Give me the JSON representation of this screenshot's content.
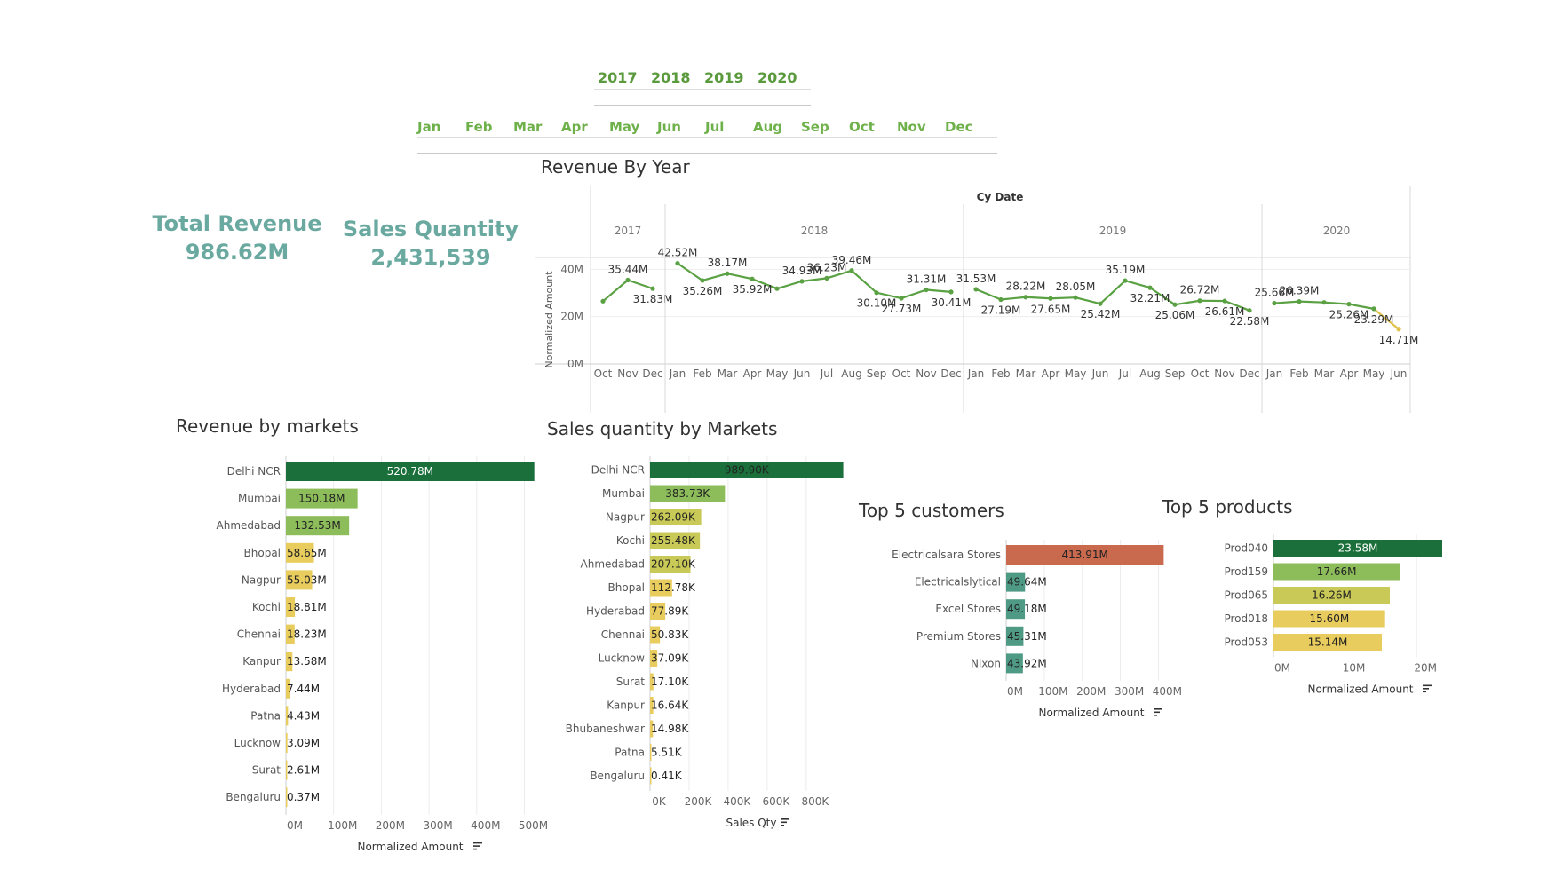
{
  "filters": {
    "years": [
      "2017",
      "2018",
      "2019",
      "2020"
    ],
    "months": [
      "Jan",
      "Feb",
      "Mar",
      "Apr",
      "May",
      "Jun",
      "Jul",
      "Aug",
      "Sep",
      "Oct",
      "Nov",
      "Dec"
    ]
  },
  "kpis": {
    "revenue_label": "Total Revenue",
    "revenue_value": "986.62M",
    "qty_label": "Sales Quantity",
    "qty_value": "2,431,539"
  },
  "colors": {
    "dark_green": "#1a6f3a",
    "light_green": "#8dbd5a",
    "yellow_green": "#c9c957",
    "yellow": "#e8cc5e",
    "teal": "#4f9a84",
    "salmon": "#c96a4e",
    "line_green": "#5aa143",
    "line_yellow": "#e0c14b"
  },
  "chart_data": [
    {
      "id": "revenue-by-year",
      "type": "line",
      "title": "Revenue By Year",
      "header": "Cy Date",
      "ylabel": "Normalized Amount",
      "yticks": [
        "0M",
        "20M",
        "40M"
      ],
      "ylim": [
        0,
        45
      ],
      "years": [
        {
          "year": "2017",
          "months": [
            "Oct",
            "Nov",
            "Dec"
          ],
          "values": [
            26.5,
            35.44,
            31.83
          ],
          "labels": [
            "",
            "35.44M",
            "31.83M"
          ]
        },
        {
          "year": "2018",
          "months": [
            "Jan",
            "Feb",
            "Mar",
            "Apr",
            "May",
            "Jun",
            "Jul",
            "Aug",
            "Sep",
            "Oct",
            "Nov",
            "Dec"
          ],
          "values": [
            42.52,
            35.26,
            38.17,
            35.92,
            31.8,
            34.93,
            36.23,
            39.46,
            30.1,
            27.73,
            31.31,
            30.41
          ],
          "labels": [
            "42.52M",
            "35.26M",
            "38.17M",
            "35.92M",
            "",
            "34.93M",
            "36.23M",
            "39.46M",
            "30.10M",
            "27.73M",
            "31.31M",
            "30.41M"
          ]
        },
        {
          "year": "2019",
          "months": [
            "Jan",
            "Feb",
            "Mar",
            "Apr",
            "May",
            "Jun",
            "Jul",
            "Aug",
            "Sep",
            "Oct",
            "Nov",
            "Dec"
          ],
          "values": [
            31.53,
            27.19,
            28.22,
            27.65,
            28.05,
            25.42,
            35.19,
            32.21,
            25.06,
            26.72,
            26.61,
            22.58
          ],
          "labels": [
            "31.53M",
            "27.19M",
            "28.22M",
            "27.65M",
            "28.05M",
            "25.42M",
            "35.19M",
            "32.21M",
            "25.06M",
            "26.72M",
            "26.61M",
            "22.58M"
          ]
        },
        {
          "year": "2020",
          "months": [
            "Jan",
            "Feb",
            "Mar",
            "Apr",
            "May",
            "Jun"
          ],
          "values": [
            25.66,
            26.39,
            26.0,
            25.26,
            23.29,
            14.71
          ],
          "labels": [
            "25.66M",
            "26.39M",
            "",
            "25.26M",
            "23.29M",
            "14.71M"
          ]
        }
      ]
    },
    {
      "id": "revenue-by-markets",
      "type": "bar",
      "title": "Revenue by markets",
      "xlabel": "Normalized Amount",
      "xticks": [
        "0M",
        "100M",
        "200M",
        "300M",
        "400M",
        "500M"
      ],
      "tick_values": [
        0,
        100,
        200,
        300,
        400,
        500
      ],
      "xlim": [
        0,
        540
      ],
      "categories": [
        "Delhi NCR",
        "Mumbai",
        "Ahmedabad",
        "Bhopal",
        "Nagpur",
        "Kochi",
        "Chennai",
        "Kanpur",
        "Hyderabad",
        "Patna",
        "Lucknow",
        "Surat",
        "Bengaluru"
      ],
      "values": [
        520.78,
        150.18,
        132.53,
        58.65,
        55.03,
        18.81,
        18.23,
        13.58,
        7.44,
        4.43,
        3.09,
        2.61,
        0.37
      ],
      "labels": [
        "520.78M",
        "150.18M",
        "132.53M",
        "58.65M",
        "55.03M",
        "18.81M",
        "18.23M",
        "13.58M",
        "7.44M",
        "4.43M",
        "3.09M",
        "2.61M",
        "0.37M"
      ]
    },
    {
      "id": "sales-qty-by-markets",
      "type": "bar",
      "title": "Sales quantity by Markets",
      "xlabel": "Sales Qty",
      "xticks": [
        "0K",
        "200K",
        "400K",
        "600K",
        "800K"
      ],
      "tick_values": [
        0,
        200,
        400,
        600,
        800
      ],
      "xlim": [
        0,
        1010
      ],
      "categories": [
        "Delhi NCR",
        "Mumbai",
        "Nagpur",
        "Kochi",
        "Ahmedabad",
        "Bhopal",
        "Hyderabad",
        "Chennai",
        "Lucknow",
        "Surat",
        "Kanpur",
        "Bhubaneshwar",
        "Patna",
        "Bengaluru"
      ],
      "values": [
        989.9,
        383.73,
        262.09,
        255.48,
        207.1,
        112.78,
        77.89,
        50.83,
        37.09,
        17.1,
        16.64,
        14.98,
        5.51,
        0.41
      ],
      "labels": [
        "989.90K",
        "383.73K",
        "262.09K",
        "255.48K",
        "207.10K",
        "112.78K",
        "77.89K",
        "50.83K",
        "37.09K",
        "17.10K",
        "16.64K",
        "14.98K",
        "5.51K",
        "0.41K"
      ]
    },
    {
      "id": "top-5-customers",
      "type": "bar",
      "title": "Top 5 customers",
      "xlabel": "Normalized Amount",
      "xticks": [
        "0M",
        "100M",
        "200M",
        "300M",
        "400M"
      ],
      "tick_values": [
        0,
        100,
        200,
        300,
        400
      ],
      "xlim": [
        0,
        420
      ],
      "categories": [
        "Electricalsara Stores",
        "Electricalslytical",
        "Excel Stores",
        "Premium Stores",
        "Nixon"
      ],
      "values": [
        413.91,
        49.64,
        49.18,
        45.31,
        43.92
      ],
      "labels": [
        "413.91M",
        "49.64M",
        "49.18M",
        "45.31M",
        "43.92M"
      ]
    },
    {
      "id": "top-5-products",
      "type": "bar",
      "title": "Top 5 products",
      "xlabel": "Normalized Amount",
      "xticks": [
        "0M",
        "10M",
        "20M"
      ],
      "tick_values": [
        0,
        10,
        20
      ],
      "xlim": [
        0,
        23.58
      ],
      "categories": [
        "Prod040",
        "Prod159",
        "Prod065",
        "Prod018",
        "Prod053"
      ],
      "values": [
        23.58,
        17.66,
        16.26,
        15.6,
        15.14
      ],
      "labels": [
        "23.58M",
        "17.66M",
        "16.26M",
        "15.60M",
        "15.14M"
      ]
    }
  ]
}
